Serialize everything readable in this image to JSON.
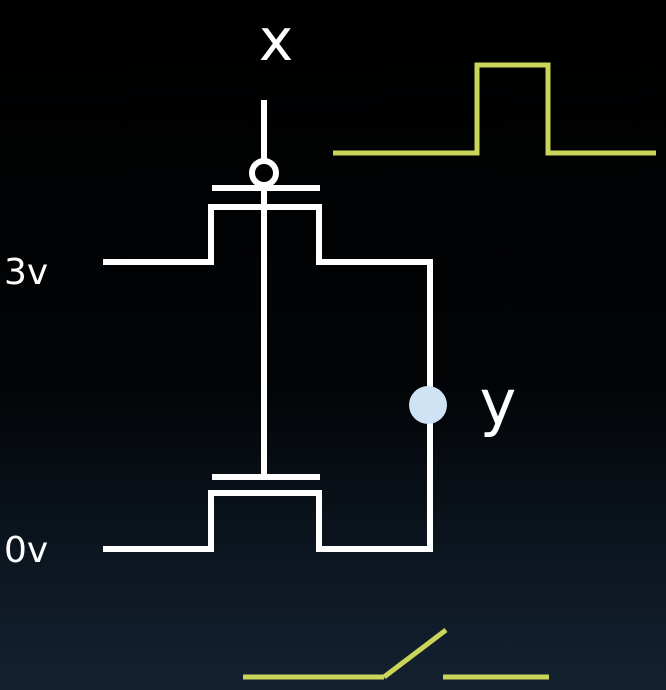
{
  "labels": {
    "input": "x",
    "output": "y",
    "supply_high": "3v",
    "supply_low": "0v"
  },
  "colors": {
    "background": "#000000",
    "wire": "#ffffff",
    "waveform": "#c9d65a",
    "output_node": "#cfe3f5"
  },
  "waveforms": {
    "input_pulse": "low-high-low",
    "switch_symbol": "open-switch"
  }
}
